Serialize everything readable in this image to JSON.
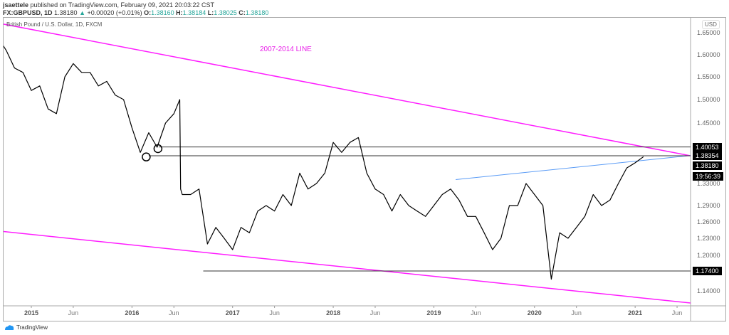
{
  "header": {
    "author": "jsaettele",
    "published": "published on TradingView.com, February 09, 2021 20:03:22 CST",
    "symbol": "FX:GBPUSD, 1D",
    "last": "1.38180",
    "change_icon": "triangle-up-icon",
    "change": "+0.00020 (+0.01%)",
    "o_label": "O:",
    "o": "1.38160",
    "h_label": "H:",
    "h": "1.38184",
    "l_label": "L:",
    "l": "1.38025",
    "c_label": "C:",
    "c": "1.38180"
  },
  "legend": "British Pound / U.S. Dollar, 1D, FXCM",
  "currency": "USD",
  "footer": {
    "logo": "TradingView"
  },
  "colors": {
    "trendline": "#ff1dff",
    "blue_line": "#5b9cf6",
    "candles": "#000000",
    "up": "#26a69a"
  },
  "chart_data": {
    "type": "line",
    "price_scale": "log",
    "annotation": "2007-2014 LINE",
    "y_ticks": [
      "1.65000",
      "1.60000",
      "1.55000",
      "1.50000",
      "1.45000",
      "1.33000",
      "1.29000",
      "1.26000",
      "1.23000",
      "1.20000",
      "1.14000"
    ],
    "price_labels": [
      {
        "value": 1.40053,
        "text": "1.40053"
      },
      {
        "value": 1.38354,
        "text": "1.38354"
      },
      {
        "value": 1.3818,
        "text": "1.38180"
      },
      {
        "value": 1.174,
        "text": "1.17400"
      }
    ],
    "countdown": "19:56:39",
    "x_ticks": [
      {
        "date": "2015-01",
        "text": "2015",
        "year": true
      },
      {
        "date": "2015-06",
        "text": "Jun"
      },
      {
        "date": "2016-01",
        "text": "2016",
        "year": true
      },
      {
        "date": "2016-06",
        "text": "Jun"
      },
      {
        "date": "2017-01",
        "text": "2017",
        "year": true
      },
      {
        "date": "2017-06",
        "text": "Jun"
      },
      {
        "date": "2018-01",
        "text": "2018",
        "year": true
      },
      {
        "date": "2018-06",
        "text": "Jun"
      },
      {
        "date": "2019-01",
        "text": "2019",
        "year": true
      },
      {
        "date": "2019-06",
        "text": "Jun"
      },
      {
        "date": "2020-01",
        "text": "2020",
        "year": true
      },
      {
        "date": "2020-06",
        "text": "Jun"
      },
      {
        "date": "2021-01",
        "text": "2021",
        "year": true
      },
      {
        "date": "2021-06",
        "text": "Jun"
      }
    ],
    "series": [
      [
        "2014-09",
        1.64
      ],
      [
        "2014-10",
        1.61
      ],
      [
        "2014-11",
        1.57
      ],
      [
        "2014-12",
        1.56
      ],
      [
        "2015-01",
        1.52
      ],
      [
        "2015-02",
        1.53
      ],
      [
        "2015-03",
        1.48
      ],
      [
        "2015-04",
        1.47
      ],
      [
        "2015-05",
        1.55
      ],
      [
        "2015-06",
        1.58
      ],
      [
        "2015-07",
        1.56
      ],
      [
        "2015-08",
        1.56
      ],
      [
        "2015-09",
        1.53
      ],
      [
        "2015-10",
        1.54
      ],
      [
        "2015-11",
        1.51
      ],
      [
        "2015-12",
        1.5
      ],
      [
        "2016-01",
        1.44
      ],
      [
        "2016-02",
        1.39
      ],
      [
        "2016-03",
        1.43
      ],
      [
        "2016-04",
        1.4
      ],
      [
        "2016-05",
        1.45
      ],
      [
        "2016-06",
        1.47
      ],
      [
        "2016-06.7",
        1.5
      ],
      [
        "2016-06.8",
        1.32
      ],
      [
        "2016-07",
        1.31
      ],
      [
        "2016-08",
        1.31
      ],
      [
        "2016-09",
        1.32
      ],
      [
        "2016-10",
        1.22
      ],
      [
        "2016-11",
        1.25
      ],
      [
        "2016-12",
        1.23
      ],
      [
        "2017-01",
        1.21
      ],
      [
        "2017-02",
        1.25
      ],
      [
        "2017-03",
        1.24
      ],
      [
        "2017-04",
        1.28
      ],
      [
        "2017-05",
        1.29
      ],
      [
        "2017-06",
        1.28
      ],
      [
        "2017-07",
        1.31
      ],
      [
        "2017-08",
        1.29
      ],
      [
        "2017-09",
        1.35
      ],
      [
        "2017-10",
        1.32
      ],
      [
        "2017-11",
        1.33
      ],
      [
        "2017-12",
        1.35
      ],
      [
        "2018-01",
        1.41
      ],
      [
        "2018-02",
        1.39
      ],
      [
        "2018-03",
        1.41
      ],
      [
        "2018-04",
        1.42
      ],
      [
        "2018-05",
        1.35
      ],
      [
        "2018-06",
        1.32
      ],
      [
        "2018-07",
        1.31
      ],
      [
        "2018-08",
        1.28
      ],
      [
        "2018-09",
        1.31
      ],
      [
        "2018-10",
        1.29
      ],
      [
        "2018-11",
        1.28
      ],
      [
        "2018-12",
        1.27
      ],
      [
        "2019-01",
        1.29
      ],
      [
        "2019-02",
        1.31
      ],
      [
        "2019-03",
        1.32
      ],
      [
        "2019-04",
        1.3
      ],
      [
        "2019-05",
        1.27
      ],
      [
        "2019-06",
        1.27
      ],
      [
        "2019-07",
        1.24
      ],
      [
        "2019-08",
        1.21
      ],
      [
        "2019-09",
        1.23
      ],
      [
        "2019-10",
        1.29
      ],
      [
        "2019-11",
        1.29
      ],
      [
        "2019-12",
        1.33
      ],
      [
        "2020-01",
        1.31
      ],
      [
        "2020-02",
        1.29
      ],
      [
        "2020-03",
        1.16
      ],
      [
        "2020-04",
        1.24
      ],
      [
        "2020-05",
        1.23
      ],
      [
        "2020-06",
        1.25
      ],
      [
        "2020-07",
        1.27
      ],
      [
        "2020-08",
        1.31
      ],
      [
        "2020-09",
        1.29
      ],
      [
        "2020-10",
        1.3
      ],
      [
        "2020-11",
        1.33
      ],
      [
        "2020-12",
        1.36
      ],
      [
        "2021-01",
        1.37
      ],
      [
        "2021-02",
        1.3818
      ]
    ],
    "trendlines": [
      {
        "name": "upper",
        "color": "#ff1dff",
        "from": [
          "2014-09",
          1.671
        ],
        "to": [
          "2021-07.6",
          1.3835
        ]
      },
      {
        "name": "lower",
        "color": "#ff1dff",
        "from": [
          "2014-09",
          1.243
        ],
        "to": [
          "2021-07.6",
          1.12
        ]
      },
      {
        "name": "blue",
        "color": "#5b9cf6",
        "from": [
          "2019-03.6",
          1.3375
        ],
        "to": [
          "2021-07.6",
          1.384
        ]
      }
    ],
    "horizontal_lines": [
      {
        "value": 1.40053,
        "from": "2016-04.2"
      },
      {
        "value": 1.38354,
        "from": "2016-03"
      },
      {
        "value": 1.174,
        "from": "2016-09.5"
      }
    ],
    "markers": [
      {
        "type": "circle",
        "date": "2016-02.7",
        "value": 1.384
      },
      {
        "type": "circle",
        "date": "2016-04.1",
        "value": 1.4
      }
    ]
  }
}
